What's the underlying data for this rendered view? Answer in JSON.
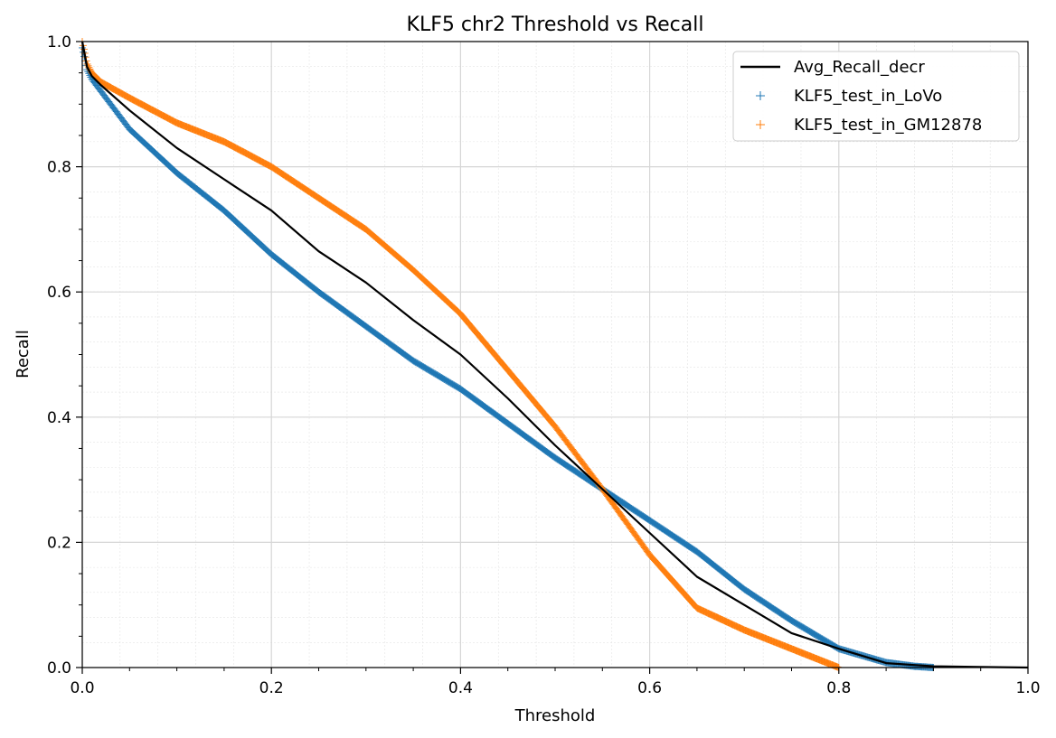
{
  "chart_data": {
    "type": "line",
    "title": "KLF5 chr2 Threshold vs Recall",
    "xlabel": "Threshold",
    "ylabel": "Recall",
    "xlim": [
      0.0,
      1.0
    ],
    "ylim": [
      0.0,
      1.0
    ],
    "x_ticks": [
      "0.0",
      "0.2",
      "0.4",
      "0.6",
      "0.8",
      "1.0"
    ],
    "y_ticks": [
      "0.0",
      "0.2",
      "0.4",
      "0.6",
      "0.8",
      "1.0"
    ],
    "grid": true,
    "minor_grid": true,
    "legend_position": "top-right",
    "series": [
      {
        "name": "Avg_Recall_decr",
        "style": "line",
        "color": "#000000",
        "x": [
          0.0,
          0.005,
          0.01,
          0.02,
          0.05,
          0.1,
          0.15,
          0.2,
          0.25,
          0.3,
          0.35,
          0.4,
          0.45,
          0.5,
          0.55,
          0.6,
          0.65,
          0.7,
          0.75,
          0.8,
          0.85,
          0.9,
          0.95,
          1.0
        ],
        "y": [
          1.0,
          0.96,
          0.945,
          0.93,
          0.89,
          0.83,
          0.78,
          0.73,
          0.665,
          0.615,
          0.555,
          0.5,
          0.43,
          0.355,
          0.285,
          0.215,
          0.145,
          0.1,
          0.055,
          0.03,
          0.007,
          0.002,
          0.001,
          0.0
        ]
      },
      {
        "name": "KLF5_test_in_LoVo",
        "style": "plus",
        "color": "#1f77b4",
        "x": [
          0.0,
          0.005,
          0.01,
          0.02,
          0.05,
          0.1,
          0.15,
          0.2,
          0.25,
          0.3,
          0.35,
          0.4,
          0.45,
          0.5,
          0.55,
          0.6,
          0.65,
          0.7,
          0.75,
          0.8,
          0.85,
          0.88,
          0.9
        ],
        "y": [
          0.99,
          0.955,
          0.94,
          0.92,
          0.86,
          0.79,
          0.73,
          0.66,
          0.6,
          0.545,
          0.49,
          0.445,
          0.39,
          0.335,
          0.285,
          0.235,
          0.185,
          0.125,
          0.075,
          0.03,
          0.008,
          0.002,
          0.0
        ]
      },
      {
        "name": "KLF5_test_in_GM12878",
        "style": "plus",
        "color": "#ff7f0e",
        "x": [
          0.0,
          0.005,
          0.01,
          0.02,
          0.05,
          0.1,
          0.15,
          0.2,
          0.25,
          0.3,
          0.35,
          0.4,
          0.45,
          0.5,
          0.55,
          0.6,
          0.65,
          0.7,
          0.75,
          0.8
        ],
        "y": [
          1.0,
          0.965,
          0.95,
          0.935,
          0.91,
          0.87,
          0.84,
          0.8,
          0.75,
          0.7,
          0.635,
          0.565,
          0.475,
          0.385,
          0.285,
          0.18,
          0.095,
          0.06,
          0.03,
          0.0
        ]
      }
    ]
  }
}
